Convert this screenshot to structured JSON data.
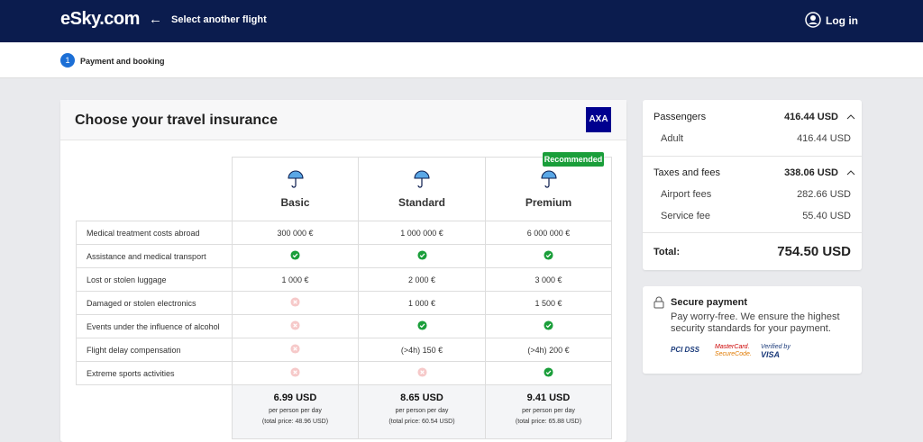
{
  "header": {
    "logo": "eSky.com",
    "back": "Select another flight",
    "login": "Log in"
  },
  "steps": {
    "number": "1",
    "label": "Payment and booking"
  },
  "insurance": {
    "title": "Choose your travel insurance",
    "brand": "AXA",
    "badge": "Recommended",
    "plans": [
      "Basic",
      "Standard",
      "Premium"
    ],
    "rows": [
      {
        "label": "Medical treatment costs abroad",
        "Basic": "300 000 €",
        "Standard": "1 000 000 €",
        "Premium": "6 000 000 €"
      },
      {
        "label": "Assistance and medical transport"
      },
      {
        "label": "Lost or stolen luggage",
        "Basic": "1 000 €",
        "Standard": "2 000 €",
        "Premium": "3 000 €"
      },
      {
        "label": "Damaged or stolen electronics",
        "Standard": "1 000 €",
        "Premium": "1 500 €"
      },
      {
        "label": "Events under the influence of alcohol"
      },
      {
        "label": "Flight delay compensation",
        "Standard": "(>4h) 150 €",
        "Premium": "(>4h) 200 €"
      },
      {
        "label": "Extreme sports activities"
      }
    ],
    "prices": [
      {
        "price": "6.99 USD",
        "per": "per person per day",
        "total": "(total price: 48.96 USD)"
      },
      {
        "price": "8.65 USD",
        "per": "per person per day",
        "total": "(total price: 60.54 USD)"
      },
      {
        "price": "9.41 USD",
        "per": "per person per day",
        "total": "(total price: 65.88 USD)"
      }
    ]
  },
  "summary": {
    "passengers": {
      "label": "Passengers",
      "amount": "416.44 USD"
    },
    "adult": {
      "label": "Adult",
      "amount": "416.44 USD"
    },
    "taxes": {
      "label": "Taxes and fees",
      "amount": "338.06 USD"
    },
    "airport": {
      "label": "Airport fees",
      "amount": "282.66 USD"
    },
    "service": {
      "label": "Service fee",
      "amount": "55.40 USD"
    },
    "total": {
      "label": "Total:",
      "amount": "754.50 USD"
    }
  },
  "secure": {
    "title": "Secure payment",
    "text": "Pay worry-free. We ensure the highest security standards for your payment.",
    "logos": [
      "PCI DSS",
      "MasterCard.",
      "SecureCode.",
      "Verified by",
      "VISA"
    ]
  }
}
